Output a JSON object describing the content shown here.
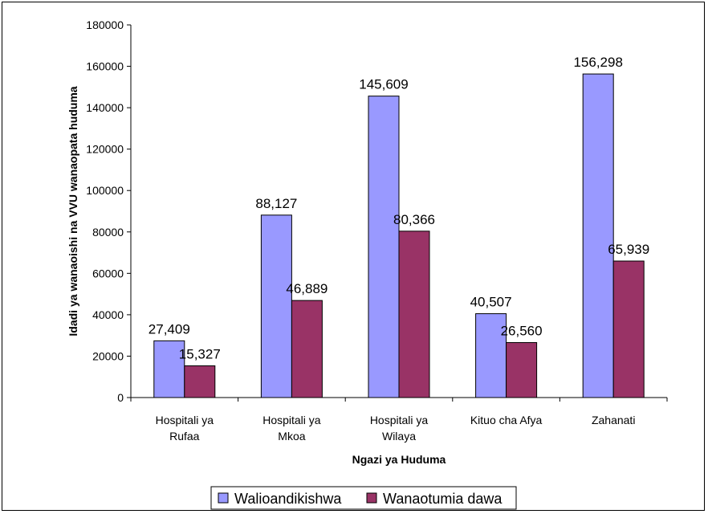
{
  "chart_data": {
    "type": "bar",
    "title": "",
    "xlabel": "Ngazi ya Huduma",
    "ylabel": "Idadi ya wanaoishi na VVU wanaopata huduma",
    "categories": [
      [
        "Hospitali ya",
        "Rufaa"
      ],
      [
        "Hospitali ya",
        "Mkoa"
      ],
      [
        "Hospitali ya",
        "Wilaya"
      ],
      [
        "Kituo cha Afya"
      ],
      [
        "Zahanati"
      ]
    ],
    "ylim": [
      0,
      180000
    ],
    "yticks": [
      "0",
      "20000",
      "40000",
      "60000",
      "80000",
      "100000",
      "120000",
      "140000",
      "160000",
      "180000"
    ],
    "grid": false,
    "legend_position": "bottom",
    "series": [
      {
        "name": "Walioandikishwa",
        "color": "#9999ff",
        "values": [
          27409,
          88127,
          145609,
          40507,
          156298
        ],
        "labels": [
          "27,409",
          "88,127",
          "145,609",
          "40,507",
          "156,298"
        ]
      },
      {
        "name": "Wanaotumia dawa",
        "color": "#993366",
        "values": [
          15327,
          46889,
          80366,
          26560,
          65939
        ],
        "labels": [
          "15,327",
          "46,889",
          "80,366",
          "26,560",
          "65,939"
        ]
      }
    ]
  }
}
